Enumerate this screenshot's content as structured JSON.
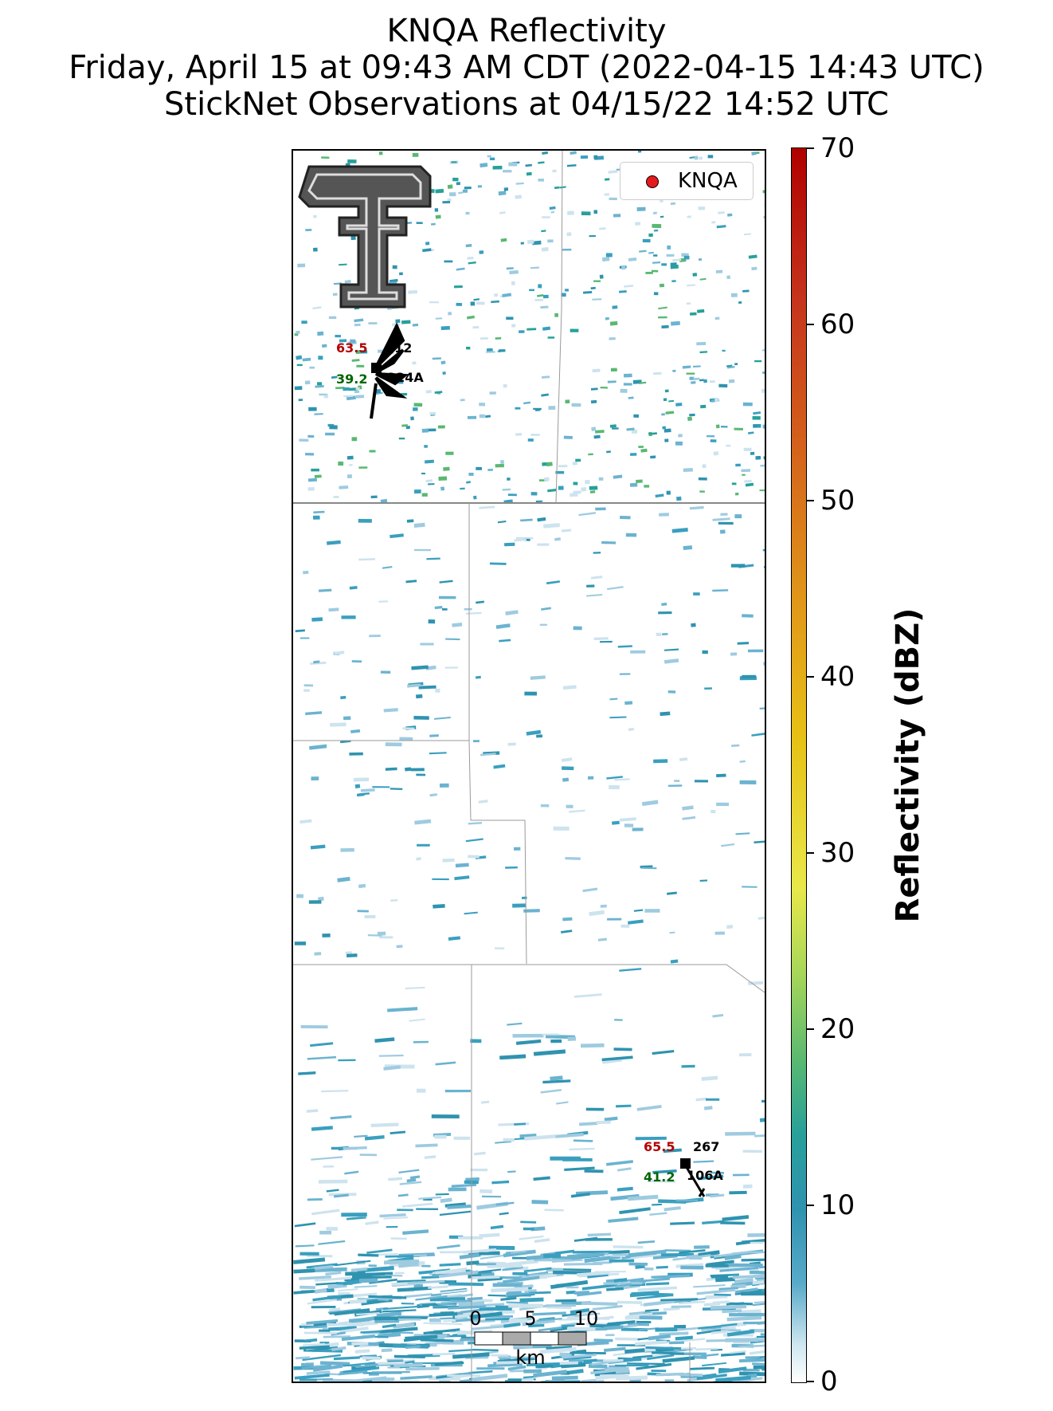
{
  "title": {
    "line1": "KNQA Reflectivity",
    "line2": "Friday, April 15 at 09:43 AM CDT (2022-04-15 14:43 UTC)",
    "line3": "StickNet Observations at 04/15/22 14:52 UTC"
  },
  "legend": {
    "label": "KNQA",
    "marker_color": "#e41a1c"
  },
  "colorbar": {
    "label": "Reflectivity (dBZ)",
    "ticks": [
      "0",
      "10",
      "20",
      "30",
      "40",
      "50",
      "60",
      "70"
    ],
    "min": 0,
    "max": 70
  },
  "stations": [
    {
      "id": "0224A",
      "shown_id": "224A",
      "number": "0212",
      "shown_number": "212",
      "temperature": "63.5",
      "dewpoint": "39.2"
    },
    {
      "id": "0106A",
      "shown_id": "106A",
      "number": "0267",
      "shown_number": "267",
      "temperature": "65.5",
      "dewpoint": "41.2"
    }
  ],
  "scale_bar": {
    "labels": [
      "0",
      "5",
      "10"
    ],
    "unit": "km"
  },
  "logo": "texas-tech-double-t-logo",
  "colors": {
    "temperature": "#b30000",
    "dewpoint": "#006400",
    "station_marker": "#000000"
  }
}
